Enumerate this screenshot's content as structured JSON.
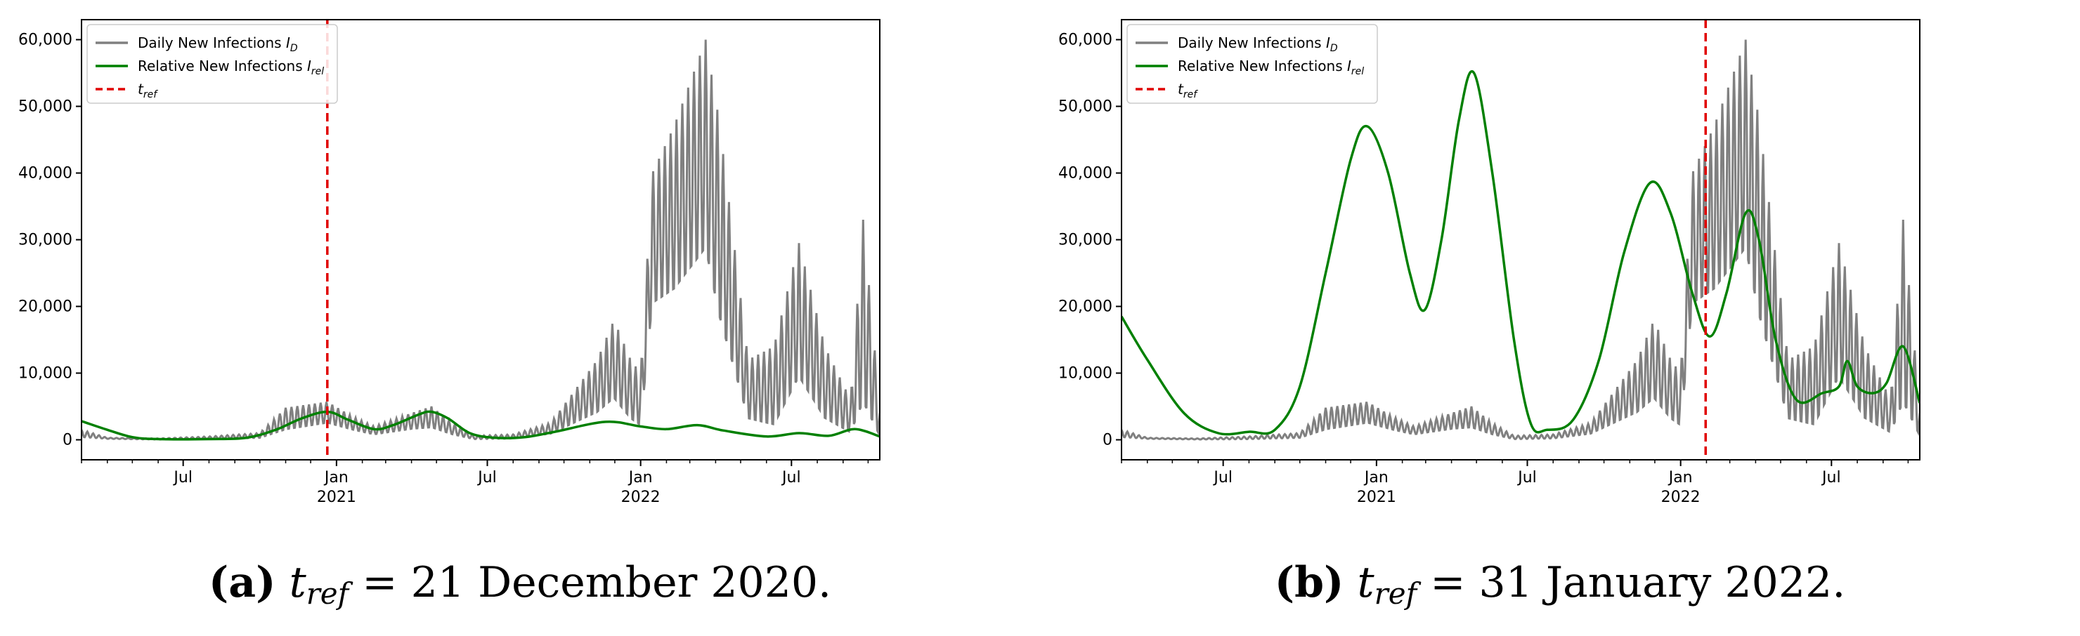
{
  "chart_data": [
    {
      "type": "line",
      "panel_label": "(a)",
      "caption_suffix": "= 21 December 2020.",
      "x_ticks": [
        {
          "date": "2020-07-01",
          "label": "Jul",
          "year": ""
        },
        {
          "date": "2021-01-01",
          "label": "Jan",
          "year": "2021"
        },
        {
          "date": "2021-07-01",
          "label": "Jul",
          "year": ""
        },
        {
          "date": "2022-01-01",
          "label": "Jan",
          "year": "2022"
        },
        {
          "date": "2022-07-01",
          "label": "Jul",
          "year": ""
        }
      ],
      "xlim": [
        "2020-03-01",
        "2022-10-15"
      ],
      "ylim": [
        -3000,
        63000
      ],
      "y_ticks": [
        0,
        10000,
        20000,
        30000,
        40000,
        50000,
        60000
      ],
      "y_tick_labels": [
        "0",
        "10,000",
        "20,000",
        "30,000",
        "40,000",
        "50,000",
        "60,000"
      ],
      "legend_position": "top-left",
      "t_ref": "2020-12-21",
      "series": [
        {
          "name": "Daily New Infections",
          "subscript": "D",
          "color": "#808080",
          "style": "weekly-oscillating",
          "envelope": [
            [
              "2020-03-01",
              400,
              1500
            ],
            [
              "2020-04-01",
              150,
              300
            ],
            [
              "2020-06-01",
              50,
              200
            ],
            [
              "2020-08-01",
              100,
              500
            ],
            [
              "2020-10-01",
              300,
              1000
            ],
            [
              "2020-11-01",
              1500,
              4800
            ],
            [
              "2020-12-21",
              2500,
              5700
            ],
            [
              "2021-01-20",
              1500,
              3500
            ],
            [
              "2021-02-15",
              800,
              2000
            ],
            [
              "2021-04-01",
              1600,
              4000
            ],
            [
              "2021-04-25",
              1800,
              5000
            ],
            [
              "2021-05-20",
              800,
              2500
            ],
            [
              "2021-06-15",
              100,
              600
            ],
            [
              "2021-08-01",
              200,
              800
            ],
            [
              "2021-09-15",
              900,
              2500
            ],
            [
              "2021-11-10",
              4000,
              12000
            ],
            [
              "2021-11-30",
              6000,
              18000
            ],
            [
              "2021-12-20",
              3000,
              12000
            ],
            [
              "2022-01-01",
              2000,
              10000
            ],
            [
              "2022-01-15",
              20000,
              40000
            ],
            [
              "2022-02-10",
              22000,
              47000
            ],
            [
              "2022-03-20",
              28000,
              60000
            ],
            [
              "2022-04-05",
              18000,
              48000
            ],
            [
              "2022-05-10",
              3000,
              12000
            ],
            [
              "2022-06-10",
              2000,
              14000
            ],
            [
              "2022-07-10",
              9000,
              29500
            ],
            [
              "2022-08-10",
              3000,
              14000
            ],
            [
              "2022-09-10",
              1000,
              6000
            ],
            [
              "2022-09-25",
              5000,
              33000
            ],
            [
              "2022-10-15",
              500,
              5000
            ]
          ]
        },
        {
          "name": "Relative New Infections",
          "subscript": "rel",
          "color": "#008000",
          "points": [
            [
              "2020-03-01",
              2800
            ],
            [
              "2020-04-01",
              1500
            ],
            [
              "2020-05-01",
              400
            ],
            [
              "2020-06-01",
              100
            ],
            [
              "2020-08-01",
              100
            ],
            [
              "2020-09-15",
              300
            ],
            [
              "2020-10-20",
              1500
            ],
            [
              "2020-11-20",
              3200
            ],
            [
              "2020-12-21",
              4200
            ],
            [
              "2021-01-15",
              3000
            ],
            [
              "2021-02-15",
              1600
            ],
            [
              "2021-03-10",
              2200
            ],
            [
              "2021-04-10",
              3800
            ],
            [
              "2021-04-25",
              4200
            ],
            [
              "2021-05-15",
              3200
            ],
            [
              "2021-06-10",
              1000
            ],
            [
              "2021-07-10",
              300
            ],
            [
              "2021-08-15",
              400
            ],
            [
              "2021-09-20",
              1200
            ],
            [
              "2021-11-20",
              2700
            ],
            [
              "2022-01-01",
              2000
            ],
            [
              "2022-02-01",
              1600
            ],
            [
              "2022-03-10",
              2200
            ],
            [
              "2022-04-10",
              1400
            ],
            [
              "2022-06-01",
              500
            ],
            [
              "2022-07-10",
              1000
            ],
            [
              "2022-08-15",
              600
            ],
            [
              "2022-09-15",
              1600
            ],
            [
              "2022-10-15",
              500
            ]
          ]
        }
      ],
      "legend_third": "t",
      "legend_third_sub": "ref"
    },
    {
      "type": "line",
      "panel_label": "(b)",
      "caption_suffix": "= 31 January 2022.",
      "x_ticks": [
        {
          "date": "2020-07-01",
          "label": "Jul",
          "year": ""
        },
        {
          "date": "2021-01-01",
          "label": "Jan",
          "year": "2021"
        },
        {
          "date": "2021-07-01",
          "label": "Jul",
          "year": ""
        },
        {
          "date": "2022-01-01",
          "label": "Jan",
          "year": "2022"
        },
        {
          "date": "2022-07-01",
          "label": "Jul",
          "year": ""
        }
      ],
      "xlim": [
        "2020-03-01",
        "2022-10-15"
      ],
      "ylim": [
        -3000,
        63000
      ],
      "y_ticks": [
        0,
        10000,
        20000,
        30000,
        40000,
        50000,
        60000
      ],
      "y_tick_labels": [
        "0",
        "10,000",
        "20,000",
        "30,000",
        "40,000",
        "50,000",
        "60,000"
      ],
      "legend_position": "top-left",
      "t_ref": "2022-01-31",
      "series": [
        {
          "name": "Daily New Infections",
          "subscript": "D",
          "color": "#808080",
          "style": "weekly-oscillating",
          "envelope": [
            [
              "2020-03-01",
              400,
              1500
            ],
            [
              "2020-04-01",
              150,
              300
            ],
            [
              "2020-06-01",
              50,
              200
            ],
            [
              "2020-08-01",
              100,
              500
            ],
            [
              "2020-10-01",
              300,
              1000
            ],
            [
              "2020-11-01",
              1500,
              4800
            ],
            [
              "2020-12-21",
              2500,
              5700
            ],
            [
              "2021-01-20",
              1500,
              3500
            ],
            [
              "2021-02-15",
              800,
              2000
            ],
            [
              "2021-04-01",
              1600,
              4000
            ],
            [
              "2021-04-25",
              1800,
              5000
            ],
            [
              "2021-05-20",
              800,
              2500
            ],
            [
              "2021-06-15",
              100,
              600
            ],
            [
              "2021-08-01",
              200,
              800
            ],
            [
              "2021-09-15",
              900,
              2500
            ],
            [
              "2021-11-10",
              4000,
              12000
            ],
            [
              "2021-11-30",
              6000,
              18000
            ],
            [
              "2021-12-20",
              3000,
              12000
            ],
            [
              "2022-01-01",
              2000,
              10000
            ],
            [
              "2022-01-15",
              20000,
              40000
            ],
            [
              "2022-02-10",
              22000,
              47000
            ],
            [
              "2022-03-20",
              28000,
              60000
            ],
            [
              "2022-04-05",
              18000,
              48000
            ],
            [
              "2022-05-10",
              3000,
              12000
            ],
            [
              "2022-06-10",
              2000,
              14000
            ],
            [
              "2022-07-10",
              9000,
              29500
            ],
            [
              "2022-08-10",
              3000,
              14000
            ],
            [
              "2022-09-10",
              1000,
              6000
            ],
            [
              "2022-09-25",
              5000,
              33000
            ],
            [
              "2022-10-15",
              500,
              5000
            ]
          ]
        },
        {
          "name": "Relative New Infections",
          "subscript": "rel",
          "color": "#008000",
          "points": [
            [
              "2020-03-01",
              18500
            ],
            [
              "2020-04-01",
              12000
            ],
            [
              "2020-05-15",
              4000
            ],
            [
              "2020-06-25",
              1000
            ],
            [
              "2020-08-01",
              1200
            ],
            [
              "2020-09-01",
              1500
            ],
            [
              "2020-10-01",
              8000
            ],
            [
              "2020-11-01",
              25000
            ],
            [
              "2020-12-01",
              42000
            ],
            [
              "2020-12-21",
              47000
            ],
            [
              "2021-01-15",
              40000
            ],
            [
              "2021-02-10",
              25000
            ],
            [
              "2021-02-28",
              19500
            ],
            [
              "2021-03-20",
              30000
            ],
            [
              "2021-04-10",
              48000
            ],
            [
              "2021-04-28",
              55000
            ],
            [
              "2021-05-20",
              40000
            ],
            [
              "2021-06-15",
              15000
            ],
            [
              "2021-07-05",
              2500
            ],
            [
              "2021-07-25",
              1500
            ],
            [
              "2021-08-25",
              3000
            ],
            [
              "2021-09-25",
              12000
            ],
            [
              "2021-10-25",
              28000
            ],
            [
              "2021-11-25",
              38500
            ],
            [
              "2021-12-20",
              34000
            ],
            [
              "2022-01-15",
              22000
            ],
            [
              "2022-02-05",
              15500
            ],
            [
              "2022-02-25",
              22000
            ],
            [
              "2022-03-20",
              34000
            ],
            [
              "2022-04-05",
              30000
            ],
            [
              "2022-04-25",
              15000
            ],
            [
              "2022-05-20",
              6000
            ],
            [
              "2022-06-20",
              7000
            ],
            [
              "2022-07-10",
              8000
            ],
            [
              "2022-07-20",
              11800
            ],
            [
              "2022-08-01",
              8000
            ],
            [
              "2022-08-20",
              7000
            ],
            [
              "2022-09-05",
              8500
            ],
            [
              "2022-09-25",
              14000
            ],
            [
              "2022-10-15",
              5500
            ]
          ]
        }
      ],
      "legend_third": "t",
      "legend_third_sub": "ref"
    }
  ],
  "colors": {
    "daily": "#808080",
    "relative": "#008000",
    "tref": "#e00000"
  },
  "captions": {
    "a": {
      "label": "(a)",
      "var": "t",
      "sub": "ref",
      "text": "= 21 December 2020."
    },
    "b": {
      "label": "(b)",
      "var": "t",
      "sub": "ref",
      "text": "= 31 January 2022."
    }
  }
}
